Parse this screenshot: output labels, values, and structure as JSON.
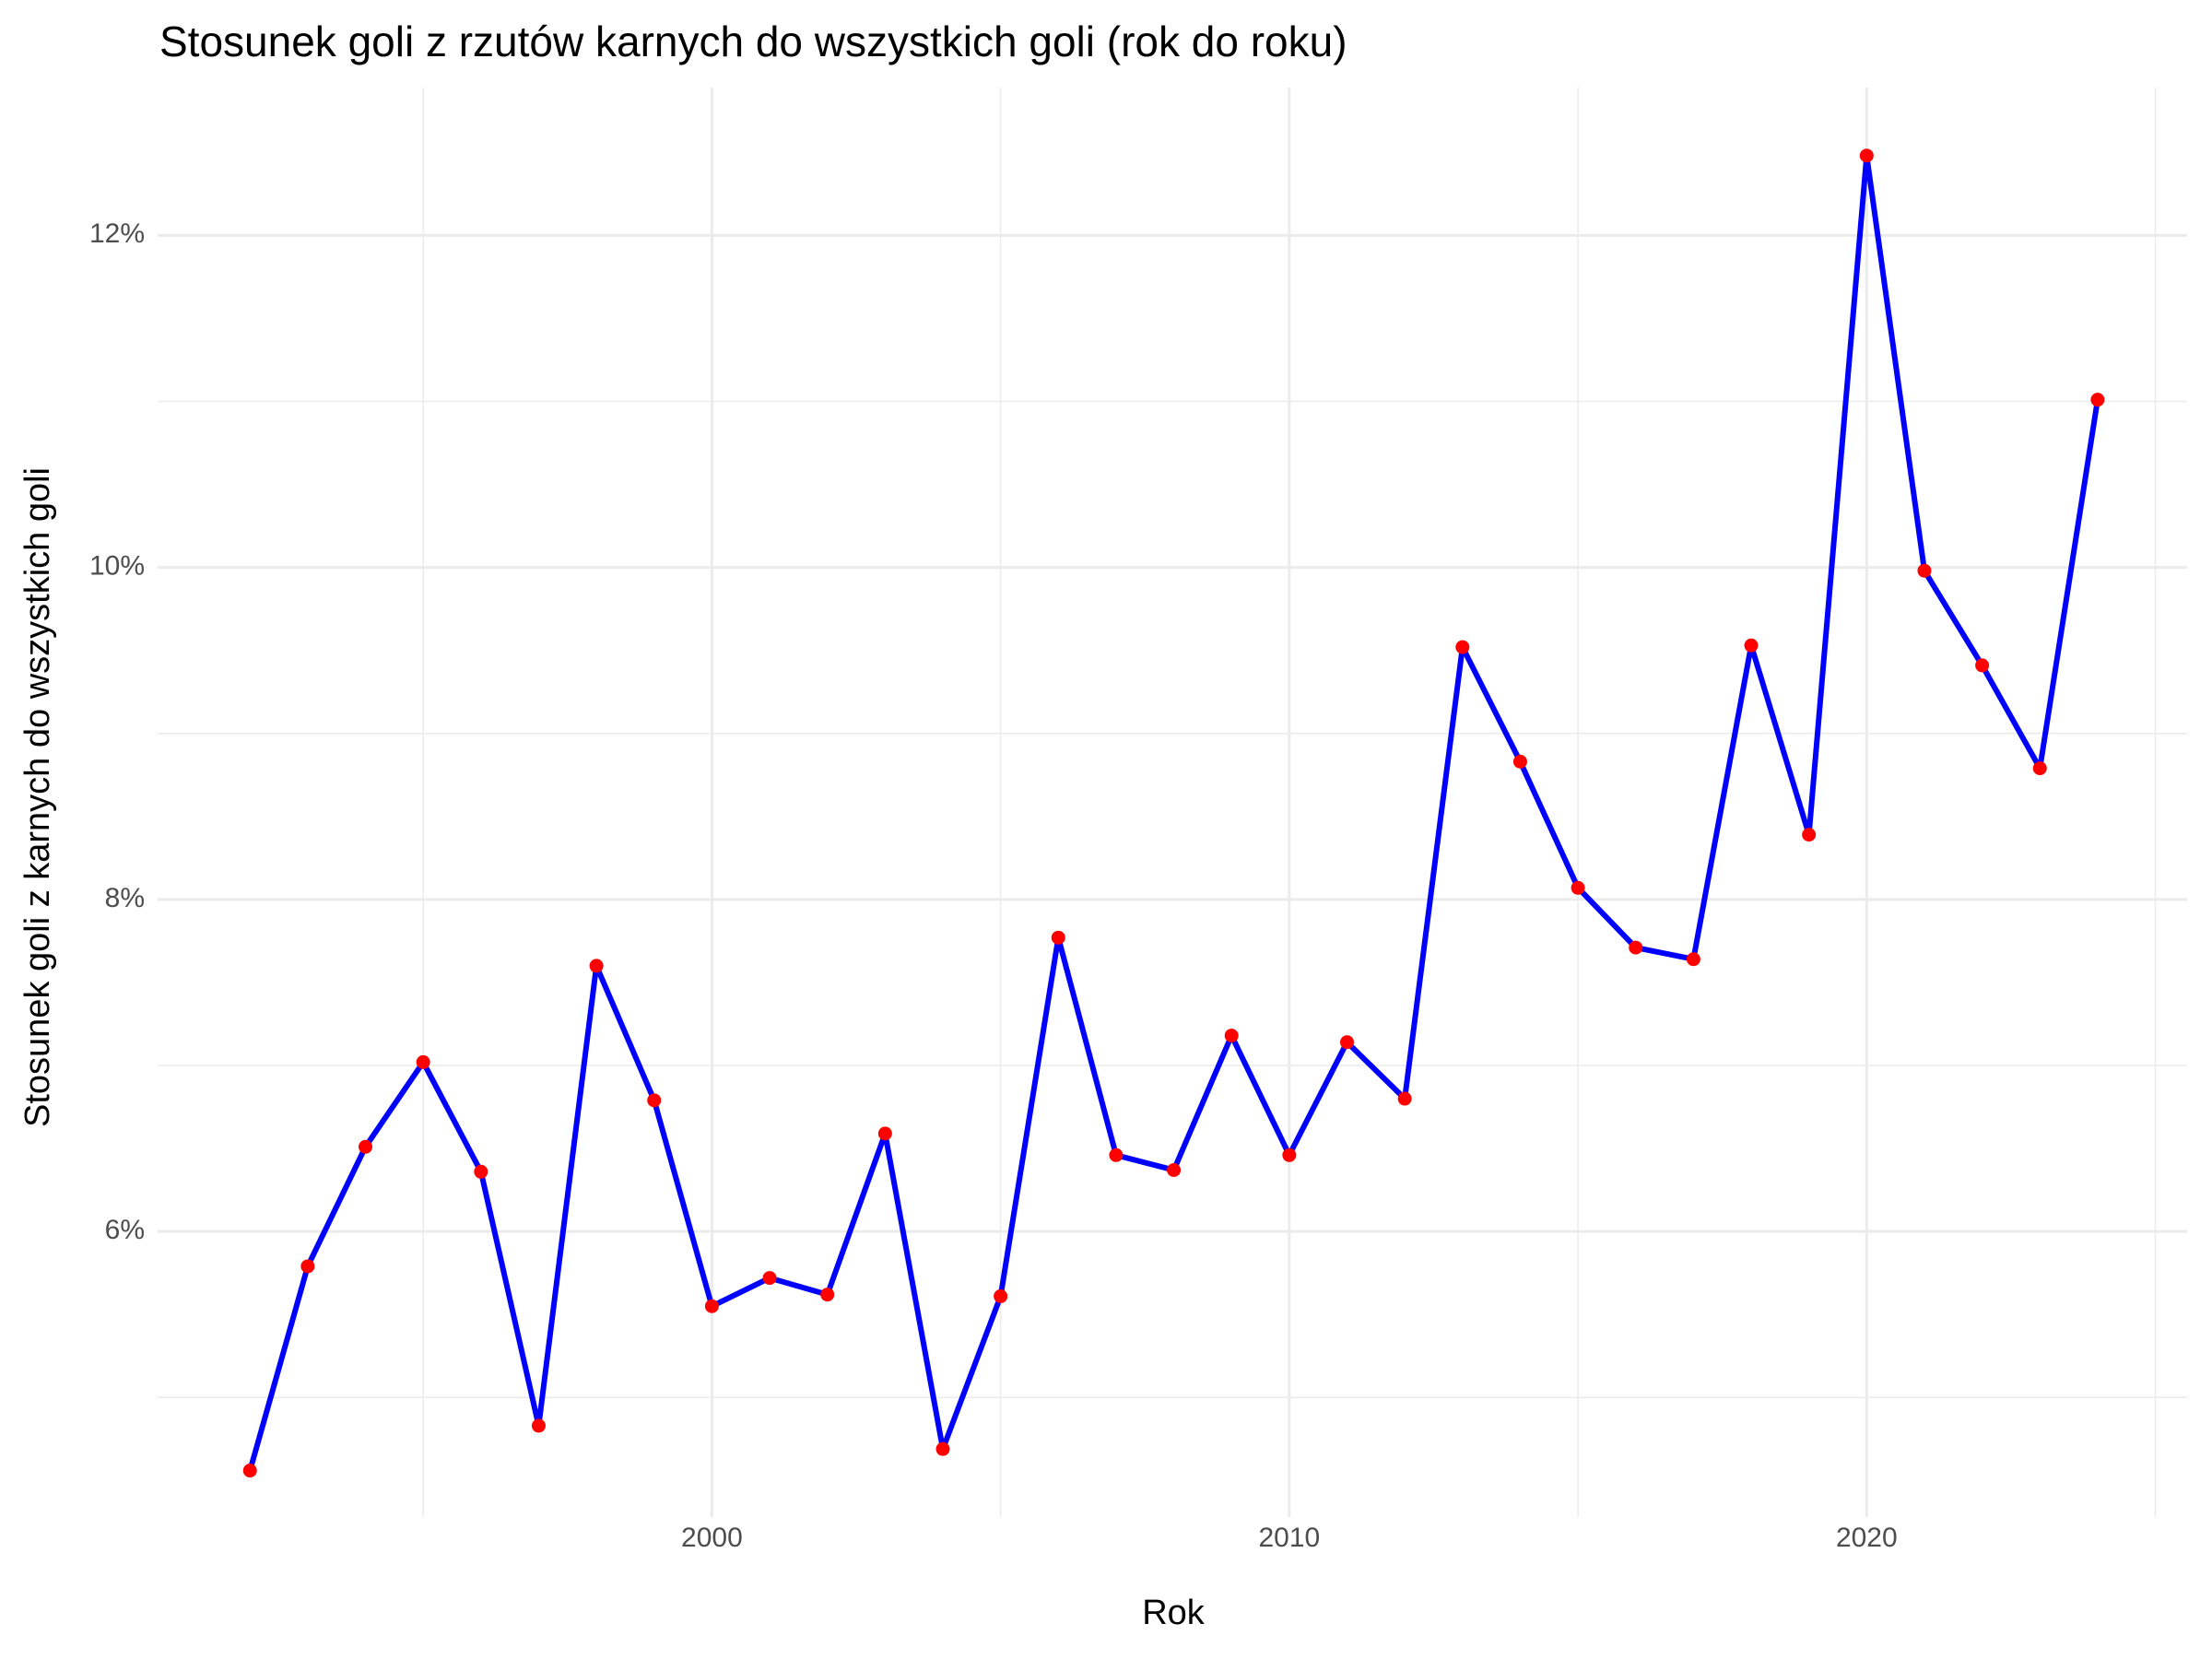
{
  "chart_data": {
    "type": "line",
    "title": "Stosunek goli z rzutów karnych do wszystkich goli (rok do roku)",
    "x_label": "Rok",
    "y_label": "Stosunek goli z karnych do wszystkich goli",
    "x": [
      1992,
      1993,
      1994,
      1995,
      1996,
      1997,
      1998,
      1999,
      2000,
      2001,
      2002,
      2003,
      2004,
      2005,
      2006,
      2007,
      2008,
      2009,
      2010,
      2011,
      2012,
      2013,
      2014,
      2015,
      2016,
      2017,
      2018,
      2019,
      2020,
      2021,
      2022,
      2023,
      2024
    ],
    "values": [
      4.56,
      5.79,
      6.51,
      7.02,
      6.36,
      4.83,
      7.6,
      6.79,
      5.55,
      5.72,
      5.62,
      6.59,
      4.69,
      5.61,
      7.77,
      6.46,
      6.37,
      7.18,
      6.46,
      7.14,
      6.8,
      9.52,
      8.83,
      8.07,
      7.71,
      7.64,
      9.53,
      8.39,
      12.48,
      9.98,
      9.41,
      8.79,
      11.01
    ],
    "color": "#0000ff",
    "marker_color": "#ff0000",
    "xlim": [
      1990.4,
      2025.55
    ],
    "ylim": [
      4.28,
      12.89
    ],
    "xticks": [
      2000,
      2010,
      2020
    ],
    "yticks": [
      {
        "value": 6,
        "label": "6%"
      },
      {
        "value": 8,
        "label": "8%"
      },
      {
        "value": 10,
        "label": "10%"
      },
      {
        "value": 12,
        "label": "12%"
      }
    ],
    "x_minor_ticks": [
      1995,
      2005,
      2015,
      2025
    ],
    "y_minor_ticks": [
      5,
      7,
      9,
      11
    ],
    "grid": true
  }
}
